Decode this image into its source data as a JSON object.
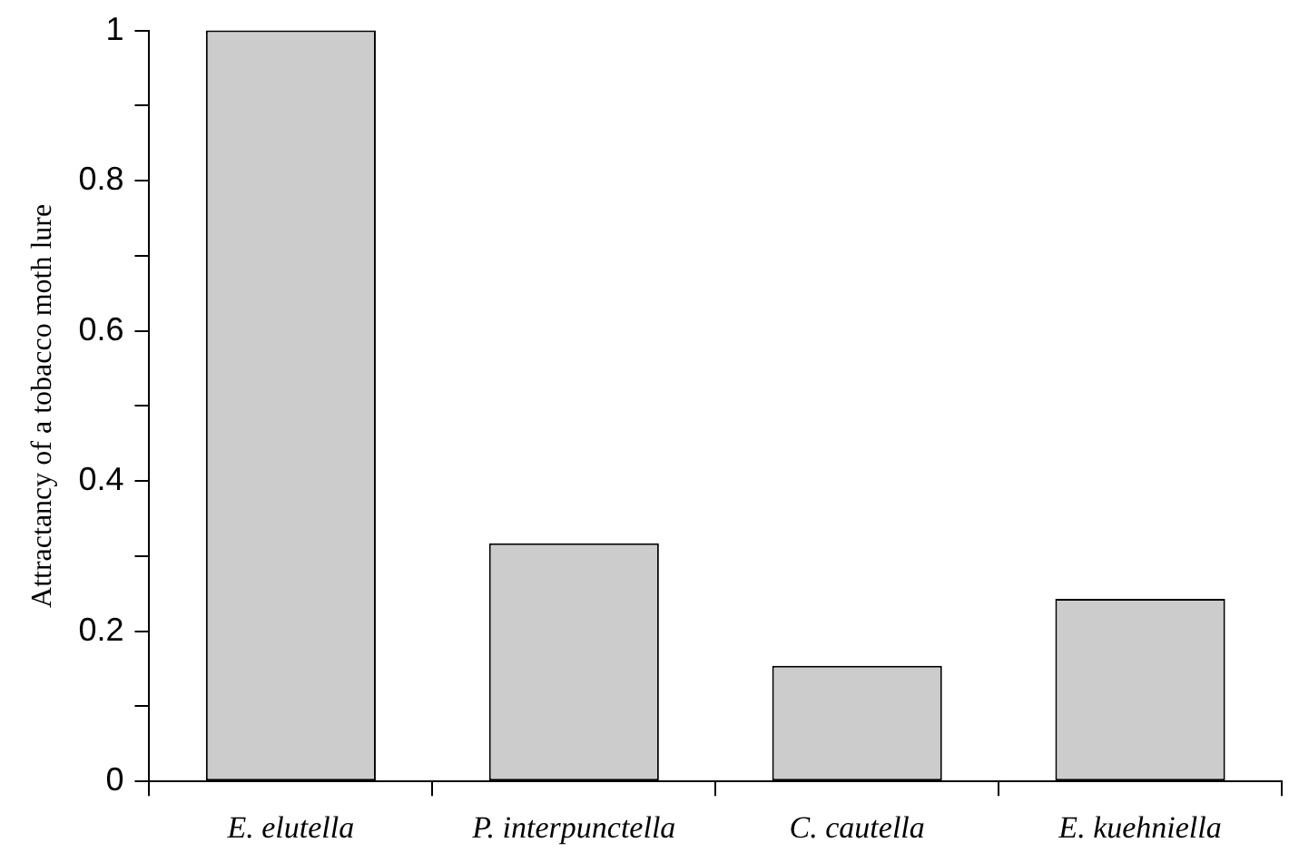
{
  "chart_data": {
    "type": "bar",
    "ylabel": "Attractancy of a tobacco moth lure",
    "categories": [
      "E. elutella",
      "P. interpunctella",
      "C. cautella",
      "E. kuehniella"
    ],
    "values": [
      1,
      0.317,
      0.154,
      0.243
    ],
    "color": "#cccccc",
    "ylim": [
      0,
      1
    ],
    "yticks": [
      0,
      {
        "value": 0.1,
        "label": null
      },
      0.2,
      {
        "value": 0.3,
        "label": null
      },
      0.4,
      {
        "value": 0.5,
        "label": null
      },
      0.6,
      {
        "value": 0.7,
        "label": null
      },
      0.8,
      {
        "value": 0.9,
        "label": null
      },
      1
    ],
    "grid": false,
    "legend": false
  }
}
